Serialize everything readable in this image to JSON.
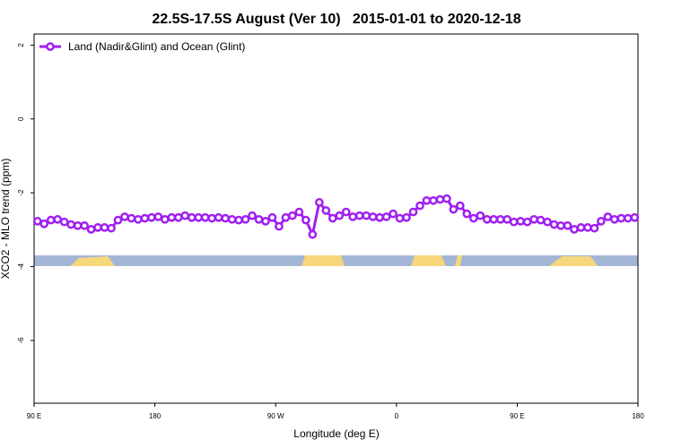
{
  "chart_data": {
    "type": "line",
    "title": "22.5S-17.5S August (Ver 10)   2015-01-01 to 2020-12-18",
    "x_label": "Longitude (deg E)",
    "y_label": "XCO2 - MLO trend (ppm)",
    "legend": "top-left",
    "xlim": [
      90,
      540
    ],
    "xticks": [
      {
        "value": 90,
        "label": "90 E"
      },
      180,
      {
        "value": 270,
        "label": "90 W"
      },
      {
        "value": 360,
        "label": "0"
      },
      {
        "value": 450,
        "label": "90 E"
      },
      {
        "value": 540,
        "label": "180"
      }
    ],
    "ylim": [
      -7.7,
      2.3
    ],
    "yticks": [
      2,
      0,
      -2,
      -4,
      -6
    ],
    "x": [
      92.5,
      97.5,
      102.5,
      107.5,
      112.5,
      117.5,
      122.5,
      127.5,
      132.5,
      137.5,
      142.5,
      147.5,
      152.5,
      157.5,
      162.5,
      167.5,
      172.5,
      177.5,
      182.5,
      187.5,
      192.5,
      197.5,
      202.5,
      207.5,
      212.5,
      217.5,
      222.5,
      227.5,
      232.5,
      237.5,
      242.5,
      247.5,
      252.5,
      257.5,
      262.5,
      267.5,
      272.5,
      277.5,
      282.5,
      287.5,
      292.5,
      297.5,
      302.5,
      307.5,
      312.5,
      317.5,
      322.5,
      327.5,
      332.5,
      337.5,
      342.5,
      347.5,
      352.5,
      357.5,
      362.5,
      367.5,
      372.5,
      377.5,
      382.5,
      387.5,
      392.5,
      397.5,
      402.5,
      407.5,
      412.5,
      417.5,
      422.5,
      427.5,
      432.5,
      437.5,
      442.5,
      447.5,
      452.5,
      457.5,
      462.5,
      467.5,
      472.5,
      477.5,
      482.5,
      487.5,
      492.5,
      497.5,
      502.5,
      507.5,
      512.5,
      517.5,
      522.5,
      527.5,
      532.5,
      537.5
    ],
    "series": [
      {
        "name": "Land (Nadir&Glint) and Ocean (Glint)",
        "color": "#a020f0",
        "values": [
          -2.77,
          -2.84,
          -2.74,
          -2.72,
          -2.79,
          -2.86,
          -2.89,
          -2.89,
          -2.99,
          -2.94,
          -2.94,
          -2.96,
          -2.74,
          -2.65,
          -2.69,
          -2.72,
          -2.69,
          -2.67,
          -2.65,
          -2.72,
          -2.67,
          -2.67,
          -2.62,
          -2.67,
          -2.67,
          -2.67,
          -2.69,
          -2.67,
          -2.69,
          -2.72,
          -2.74,
          -2.72,
          -2.62,
          -2.72,
          -2.77,
          -2.67,
          -2.91,
          -2.67,
          -2.62,
          -2.52,
          -2.74,
          -3.13,
          -2.26,
          -2.48,
          -2.69,
          -2.62,
          -2.52,
          -2.65,
          -2.62,
          -2.62,
          -2.65,
          -2.67,
          -2.65,
          -2.57,
          -2.69,
          -2.67,
          -2.52,
          -2.35,
          -2.21,
          -2.21,
          -2.18,
          -2.16,
          -2.45,
          -2.35,
          -2.57,
          -2.69,
          -2.62,
          -2.72,
          -2.72,
          -2.72,
          -2.72,
          -2.79,
          -2.77,
          -2.79,
          -2.72,
          -2.74,
          -2.79,
          -2.86,
          -2.89,
          -2.89,
          -2.99,
          -2.94,
          -2.94,
          -2.96,
          -2.77,
          -2.65,
          -2.72,
          -2.69,
          -2.69,
          -2.67
        ]
      }
    ]
  }
}
